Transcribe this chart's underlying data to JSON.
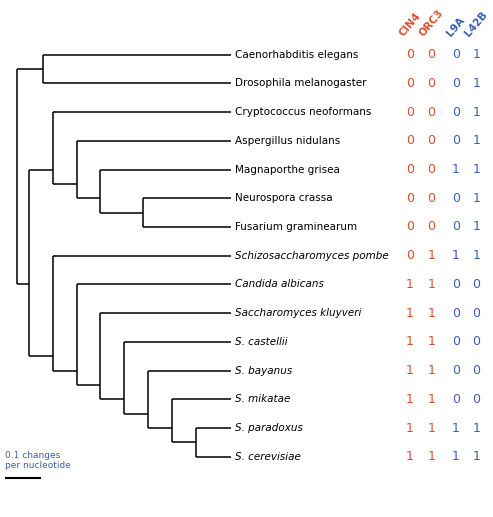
{
  "taxa": [
    "Caenorhabditis elegans",
    "Drosophila melanogaster",
    "Cryptococcus neoformans",
    "Aspergillus nidulans",
    "Magnaporthe grisea",
    "Neurospora crassa",
    "Fusarium graminearum",
    "Schizosaccharomyces pombe",
    "Candida albicans",
    "Saccharomyces kluyveri",
    "S. castellii",
    "S. bayanus",
    "S. mikatae",
    "S. paradoxus",
    "S. cerevisiae"
  ],
  "italic_from": 7,
  "data_columns": {
    "CIN4": [
      0,
      0,
      0,
      0,
      0,
      0,
      0,
      0,
      1,
      1,
      1,
      1,
      1,
      1,
      1
    ],
    "ORC3": [
      0,
      0,
      0,
      0,
      0,
      0,
      0,
      1,
      1,
      1,
      1,
      1,
      1,
      1,
      1
    ],
    "L9A": [
      0,
      0,
      0,
      0,
      1,
      0,
      0,
      1,
      0,
      0,
      0,
      0,
      0,
      1,
      1
    ],
    "L42B": [
      1,
      1,
      1,
      1,
      1,
      1,
      1,
      1,
      0,
      0,
      0,
      0,
      0,
      1,
      1
    ]
  },
  "col_colors": {
    "CIN4": "#d94f2b",
    "ORC3": "#d94f2b",
    "L9A": "#3a5faf",
    "L42B": "#3a5faf"
  },
  "col_headers": [
    "CIN4",
    "ORC3",
    "L9A",
    "L42B"
  ],
  "tree_color": "#000000",
  "text_color": "#000000",
  "background": "#ffffff",
  "scalebar_label": "0.1 changes\nper nucleotide",
  "scalebar_color": "#3a5faf",
  "fig_width": 4.93,
  "fig_height": 5.17,
  "fig_dpi": 100
}
